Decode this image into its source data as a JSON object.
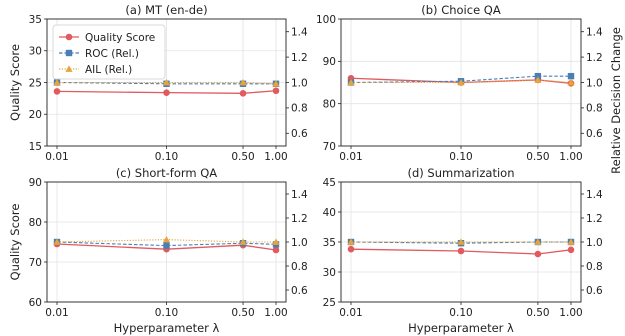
{
  "chart_data": [
    {
      "type": "line",
      "title": "(a) MT (en-de)",
      "xlabel": "",
      "ylabel": "Quality Score",
      "y2label": "",
      "x": [
        0.01,
        0.1,
        0.5,
        1.0
      ],
      "x_tick_labels": [
        "0.01",
        "0.10",
        "0.50",
        "1.00"
      ],
      "xscale": "log",
      "ylim": [
        15,
        35
      ],
      "yticks": [
        15,
        20,
        25,
        30,
        35
      ],
      "y2lim": [
        0.5,
        1.5
      ],
      "y2ticks": [
        0.6,
        0.8,
        1.0,
        1.2,
        1.4
      ],
      "y2_tick_labels": [
        "0.6",
        "0.8",
        "1.0",
        "1.2",
        "1.4"
      ],
      "grid": true,
      "legend_placement": "top-left",
      "series": [
        {
          "name": "Quality Score",
          "axis": "left",
          "color": "#e05a5f",
          "marker": "circle",
          "line": "solid",
          "values": [
            23.6,
            23.4,
            23.3,
            23.7
          ]
        },
        {
          "name": "ROC (Rel.)",
          "axis": "right",
          "color": "#4a7fb5",
          "marker": "square",
          "line": "dashed",
          "values": [
            1.0,
            0.99,
            0.99,
            0.99
          ]
        },
        {
          "name": "AIL (Rel.)",
          "axis": "right",
          "color": "#e8a33a",
          "marker": "triangle",
          "line": "dotted",
          "values": [
            1.0,
            1.0,
            1.0,
            0.99
          ]
        }
      ]
    },
    {
      "type": "line",
      "title": "(b) Choice QA",
      "xlabel": "",
      "ylabel": "",
      "y2label": "Relative Decision Change",
      "x": [
        0.01,
        0.1,
        0.5,
        1.0
      ],
      "x_tick_labels": [
        "0.01",
        "0.10",
        "0.50",
        "1.00"
      ],
      "xscale": "log",
      "ylim": [
        70,
        100
      ],
      "yticks": [
        70,
        80,
        90,
        100
      ],
      "y2lim": [
        0.5,
        1.5
      ],
      "y2ticks": [
        0.6,
        0.8,
        1.0,
        1.2,
        1.4
      ],
      "y2_tick_labels": [
        "0.6",
        "0.8",
        "1.0",
        "1.2",
        "1.4"
      ],
      "grid": true,
      "series": [
        {
          "name": "Quality Score",
          "axis": "left",
          "color": "#e05a5f",
          "marker": "circle",
          "line": "solid",
          "values": [
            86.0,
            85.0,
            85.6,
            84.8
          ]
        },
        {
          "name": "ROC (Rel.)",
          "axis": "right",
          "color": "#4a7fb5",
          "marker": "square",
          "line": "dashed",
          "values": [
            1.0,
            1.01,
            1.05,
            1.05
          ]
        },
        {
          "name": "AIL (Rel.)",
          "axis": "right",
          "color": "#e8a33a",
          "marker": "triangle",
          "line": "dotted",
          "values": [
            1.0,
            1.0,
            1.02,
            1.0
          ]
        }
      ]
    },
    {
      "type": "line",
      "title": "(c) Short-form QA",
      "xlabel": "Hyperparameter λ",
      "ylabel": "Quality Score",
      "y2label": "",
      "x": [
        0.01,
        0.1,
        0.5,
        1.0
      ],
      "x_tick_labels": [
        "0.01",
        "0.10",
        "0.50",
        "1.00"
      ],
      "xscale": "log",
      "ylim": [
        60,
        90
      ],
      "yticks": [
        60,
        70,
        80,
        90
      ],
      "y2lim": [
        0.5,
        1.5
      ],
      "y2ticks": [
        0.6,
        0.8,
        1.0,
        1.2,
        1.4
      ],
      "y2_tick_labels": [
        "0.6",
        "0.8",
        "1.0",
        "1.2",
        "1.4"
      ],
      "grid": true,
      "series": [
        {
          "name": "Quality Score",
          "axis": "left",
          "color": "#e05a5f",
          "marker": "circle",
          "line": "solid",
          "values": [
            74.5,
            73.2,
            74.2,
            73.0
          ]
        },
        {
          "name": "ROC (Rel.)",
          "axis": "right",
          "color": "#4a7fb5",
          "marker": "square",
          "line": "dashed",
          "values": [
            1.0,
            0.97,
            0.99,
            0.98
          ]
        },
        {
          "name": "AIL (Rel.)",
          "axis": "right",
          "color": "#e8a33a",
          "marker": "triangle",
          "line": "dotted",
          "values": [
            1.0,
            1.02,
            1.0,
            1.0
          ]
        }
      ]
    },
    {
      "type": "line",
      "title": "(d) Summarization",
      "xlabel": "Hyperparameter λ",
      "ylabel": "",
      "y2label": "",
      "x": [
        0.01,
        0.1,
        0.5,
        1.0
      ],
      "x_tick_labels": [
        "0.01",
        "0.10",
        "0.50",
        "1.00"
      ],
      "xscale": "log",
      "ylim": [
        25,
        45
      ],
      "yticks": [
        25,
        30,
        35,
        40,
        45
      ],
      "y2lim": [
        0.5,
        1.5
      ],
      "y2ticks": [
        0.6,
        0.8,
        1.0,
        1.2,
        1.4
      ],
      "y2_tick_labels": [
        "0.6",
        "0.8",
        "1.0",
        "1.2",
        "1.4"
      ],
      "grid": true,
      "series": [
        {
          "name": "Quality Score",
          "axis": "left",
          "color": "#e05a5f",
          "marker": "circle",
          "line": "solid",
          "values": [
            33.8,
            33.5,
            33.0,
            33.7
          ]
        },
        {
          "name": "ROC (Rel.)",
          "axis": "right",
          "color": "#4a7fb5",
          "marker": "square",
          "line": "dashed",
          "values": [
            1.0,
            0.99,
            1.0,
            1.0
          ]
        },
        {
          "name": "AIL (Rel.)",
          "axis": "right",
          "color": "#e8a33a",
          "marker": "triangle",
          "line": "dotted",
          "values": [
            1.0,
            1.0,
            1.0,
            1.0
          ]
        }
      ]
    }
  ]
}
